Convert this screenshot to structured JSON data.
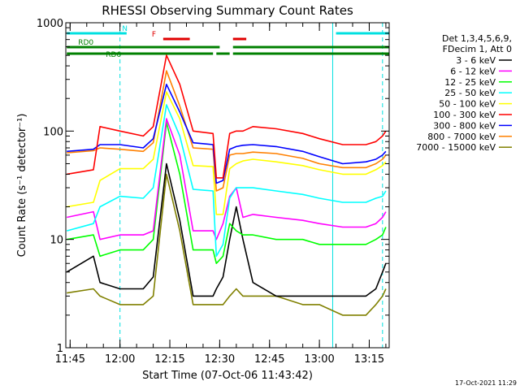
{
  "chart_data": {
    "type": "line",
    "title": "RHESSI Observing Summary Count Rates",
    "xlabel": "Start Time (07-Oct-06 11:43:42)",
    "ylabel": "Count Rate (s⁻¹ detector⁻¹)",
    "ylog": true,
    "xlim": [
      "11:43:42",
      "13:21:00"
    ],
    "ylim": [
      1,
      1000
    ],
    "x_ticks": [
      "11:45",
      "12:00",
      "12:15",
      "12:30",
      "12:45",
      "13:00",
      "13:15"
    ],
    "y_ticks": [
      "1",
      "10",
      "100",
      "1000"
    ],
    "timestamp": "17-Oct-2021 11:29",
    "legend_header": [
      "Det 1,3,4,5,6,9,",
      "FDecim 1, Att 0"
    ],
    "legend_position": "right",
    "flags": [
      {
        "label": "N",
        "color": "#00e0e0",
        "segments": [
          [
            "11:44",
            "12:02"
          ],
          [
            "13:05",
            "13:21"
          ]
        ]
      },
      {
        "label": "F",
        "color": "#e00000",
        "segments": [
          [
            "12:13",
            "12:21"
          ],
          [
            "12:34",
            "12:38"
          ]
        ]
      },
      {
        "label": "RD0",
        "color": "#008000",
        "segments": [
          [
            "11:44",
            "12:30"
          ],
          [
            "12:34",
            "13:21"
          ]
        ]
      },
      {
        "label": "RD6",
        "color": "#008000",
        "segments": [
          [
            "11:44",
            "12:28"
          ],
          [
            "12:29",
            "12:33"
          ],
          [
            "12:34",
            "13:21"
          ]
        ]
      }
    ],
    "vertical_lines": [
      {
        "x": "11:43:42",
        "style": "solid",
        "color": "#00e0e0"
      },
      {
        "x": "12:00",
        "style": "dashed",
        "color": "#00e0e0"
      },
      {
        "x": "13:04",
        "style": "solid",
        "color": "#00e0e0"
      },
      {
        "x": "13:19",
        "style": "dashed",
        "color": "#00e0e0"
      }
    ],
    "x": [
      "11:44",
      "11:52",
      "11:54",
      "12:00",
      "12:07",
      "12:10",
      "12:14",
      "12:18",
      "12:22",
      "12:28",
      "12:29",
      "12:31",
      "12:33",
      "12:35",
      "12:37",
      "12:40",
      "12:47",
      "12:55",
      "13:00",
      "13:07",
      "13:14",
      "13:17",
      "13:19",
      "13:20"
    ],
    "series": [
      {
        "name": "3 - 6 keV",
        "color": "#000000",
        "values": [
          5,
          7,
          4,
          3.5,
          3.5,
          4.5,
          50,
          15,
          3,
          3,
          3.5,
          4.5,
          10,
          20,
          10,
          4,
          3,
          3,
          3,
          3,
          3,
          3.5,
          5,
          6
        ]
      },
      {
        "name": "6 - 12 keV",
        "color": "#ff00ff",
        "values": [
          16,
          18,
          10,
          11,
          11,
          12,
          130,
          60,
          12,
          12,
          10,
          14,
          25,
          30,
          16,
          17,
          16,
          15,
          14,
          13,
          13,
          14,
          16,
          18
        ]
      },
      {
        "name": "12 - 25 keV",
        "color": "#00ff00",
        "values": [
          10,
          11,
          7,
          8,
          8,
          10,
          120,
          40,
          8,
          8,
          6,
          7,
          14,
          12,
          11,
          11,
          10,
          10,
          9,
          9,
          9,
          10,
          11,
          13
        ]
      },
      {
        "name": "25 - 50 keV",
        "color": "#00ffff",
        "values": [
          12,
          14,
          20,
          25,
          24,
          30,
          175,
          90,
          29,
          28,
          7,
          9,
          24,
          30,
          30,
          30,
          28,
          26,
          24,
          22,
          22,
          24,
          25,
          28
        ]
      },
      {
        "name": "50 - 100 keV",
        "color": "#ffff00",
        "values": [
          20,
          22,
          35,
          45,
          45,
          55,
          230,
          130,
          48,
          47,
          17,
          17,
          45,
          50,
          53,
          55,
          52,
          48,
          44,
          40,
          40,
          44,
          48,
          52
        ]
      },
      {
        "name": "100 - 300 keV",
        "color": "#ff0000",
        "values": [
          40,
          44,
          110,
          100,
          90,
          110,
          500,
          270,
          100,
          95,
          37,
          37,
          95,
          100,
          100,
          110,
          105,
          95,
          85,
          75,
          75,
          80,
          90,
          100
        ]
      },
      {
        "name": "300 - 800 keV",
        "color": "#0000ff",
        "values": [
          65,
          68,
          75,
          75,
          70,
          85,
          270,
          150,
          78,
          75,
          33,
          35,
          68,
          72,
          74,
          75,
          72,
          65,
          58,
          50,
          52,
          55,
          60,
          65
        ]
      },
      {
        "name": "800 - 7000 keV",
        "color": "#ff8000",
        "values": [
          63,
          66,
          70,
          68,
          65,
          78,
          360,
          170,
          70,
          68,
          28,
          30,
          60,
          62,
          62,
          64,
          62,
          56,
          50,
          46,
          46,
          50,
          55,
          60
        ]
      },
      {
        "name": "7000 - 15000 keV",
        "color": "#808000",
        "values": [
          3.2,
          3.5,
          3,
          2.5,
          2.5,
          3,
          40,
          12,
          2.5,
          2.5,
          2.5,
          2.5,
          3,
          3.5,
          3,
          3,
          3,
          2.5,
          2.5,
          2,
          2,
          2.5,
          3,
          3.5
        ]
      }
    ]
  }
}
